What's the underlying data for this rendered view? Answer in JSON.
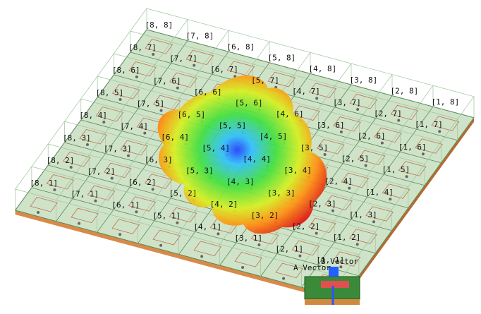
{
  "cells": [
    [
      "[8, 8]",
      "[7, 8]",
      "[6, 8]",
      "[5, 8]",
      "[4, 8]",
      "[3, 8]",
      "[2, 8]",
      "[1, 8]"
    ],
    [
      "[8, 7]",
      "[7, 7]",
      "[6, 7]",
      "[5, 7]",
      "[4, 7]",
      "[3, 7]",
      "[2, 7]",
      "[1, 7]"
    ],
    [
      "[8, 6]",
      "[7, 6]",
      "[6, 6]",
      "[5, 6]",
      "[4, 6]",
      "[3, 6]",
      "[2, 6]",
      "[1, 6]"
    ],
    [
      "[8, 5]",
      "[7, 5]",
      "[6, 5]",
      "[5, 5]",
      "[4, 5]",
      "[3, 5]",
      "[2, 5]",
      "[1, 5]"
    ],
    [
      "[8, 4]",
      "[7, 4]",
      "[6, 4]",
      "[5, 4]",
      "[4, 4]",
      "[3, 4]",
      "[2, 4]",
      "[1, 4]"
    ],
    [
      "[8, 3]",
      "[7, 3]",
      "[6, 3]",
      "[5, 3]",
      "[4, 3]",
      "[3, 3]",
      "[2, 3]",
      "[1, 3]"
    ],
    [
      "[8, 2]",
      "[7, 2]",
      "[6, 2]",
      "[5, 2]",
      "[4, 2]",
      "[3, 2]",
      "[2, 2]",
      "[1, 2]"
    ],
    [
      "[8, 1]",
      "[7, 1]",
      "[6, 1]",
      "[5, 1]",
      "[4, 1]",
      "[3, 1]",
      "[2, 1]",
      "[1, 1]"
    ]
  ],
  "axes": {
    "a": "A Vector",
    "b": "B Vector"
  }
}
